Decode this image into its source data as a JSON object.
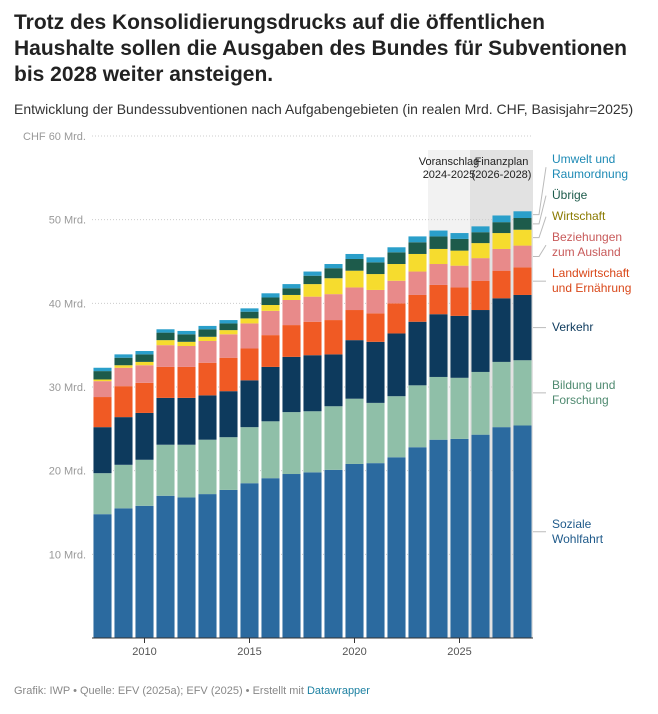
{
  "chart_data": {
    "type": "stacked-bar",
    "title": "Trotz des Konsolidierungsdrucks auf die öffentlichen Haushalte sollen die Ausgaben des Bundes für Subventionen bis 2028 weiter ansteigen.",
    "subtitle": "Entwicklung der Bundessubventionen nach Aufgabengebieten (in realen Mrd. CHF, Basisjahr=2025)",
    "x": [
      2008,
      2009,
      2010,
      2011,
      2012,
      2013,
      2014,
      2015,
      2016,
      2017,
      2018,
      2019,
      2020,
      2021,
      2022,
      2023,
      2024,
      2025,
      2026,
      2027,
      2028
    ],
    "xlim": [
      2007.5,
      2028.5
    ],
    "xticks": [
      2010,
      2015,
      2020,
      2025
    ],
    "ylim": [
      0,
      60
    ],
    "yticks": [
      {
        "value": 10,
        "label": "10 Mrd."
      },
      {
        "value": 20,
        "label": "20 Mrd."
      },
      {
        "value": 30,
        "label": "30 Mrd."
      },
      {
        "value": 40,
        "label": "40 Mrd."
      },
      {
        "value": 50,
        "label": "50 Mrd."
      },
      {
        "value": 60,
        "label": "CHF 60 Mrd."
      }
    ],
    "grid": true,
    "series": [
      {
        "name": "Soziale\nWohlfahrt",
        "color": "#2b6a9f",
        "label_color": "#1f5a8a",
        "values": [
          14.8,
          15.5,
          15.8,
          17.0,
          16.8,
          17.2,
          17.7,
          18.5,
          19.1,
          19.6,
          19.8,
          20.1,
          20.8,
          20.9,
          21.6,
          22.8,
          23.7,
          23.8,
          24.3,
          25.2,
          25.4
        ]
      },
      {
        "name": "Bildung und\nForschung",
        "color": "#8fbfa8",
        "label_color": "#4f8a70",
        "values": [
          4.9,
          5.2,
          5.5,
          6.1,
          6.3,
          6.5,
          6.3,
          6.7,
          6.8,
          7.4,
          7.3,
          7.6,
          7.8,
          7.2,
          7.3,
          7.4,
          7.5,
          7.3,
          7.5,
          7.8,
          7.8
        ]
      },
      {
        "name": "Verkehr",
        "color": "#0d3a5d",
        "label_color": "#0d3a5d",
        "values": [
          5.5,
          5.7,
          5.6,
          5.6,
          5.6,
          5.3,
          5.5,
          5.6,
          6.5,
          6.6,
          6.7,
          6.2,
          7.0,
          7.3,
          7.5,
          7.6,
          7.5,
          7.4,
          7.4,
          7.6,
          7.8
        ]
      },
      {
        "name": "Landwirtschaft\nund Ernährung",
        "color": "#f05a24",
        "label_color": "#d9481a",
        "values": [
          3.6,
          3.7,
          3.6,
          3.7,
          3.7,
          3.9,
          4.0,
          3.8,
          3.8,
          3.8,
          4.0,
          4.1,
          3.6,
          3.4,
          3.6,
          3.2,
          3.5,
          3.4,
          3.5,
          3.3,
          3.3
        ]
      },
      {
        "name": "Beziehungen\nzum Ausland",
        "color": "#e88a8a",
        "label_color": "#c85a5a",
        "values": [
          1.9,
          2.2,
          2.1,
          2.6,
          2.5,
          2.6,
          2.8,
          3.0,
          2.9,
          3.0,
          3.0,
          3.1,
          2.7,
          2.8,
          2.7,
          2.8,
          2.5,
          2.6,
          2.7,
          2.6,
          2.6
        ]
      },
      {
        "name": "Wirtschaft",
        "color": "#f6dc2e",
        "label_color": "#8a7a00",
        "values": [
          0.2,
          0.3,
          0.4,
          0.6,
          0.5,
          0.5,
          0.5,
          0.6,
          0.7,
          0.6,
          1.5,
          1.9,
          2.0,
          1.9,
          2.0,
          2.1,
          1.8,
          1.8,
          1.8,
          1.9,
          1.9
        ]
      },
      {
        "name": "Übrige",
        "color": "#1d5b4b",
        "label_color": "#1d5b4b",
        "values": [
          1.0,
          0.9,
          0.9,
          0.9,
          0.9,
          0.9,
          0.8,
          0.8,
          0.9,
          0.8,
          1.0,
          1.2,
          1.4,
          1.4,
          1.4,
          1.4,
          1.5,
          1.4,
          1.3,
          1.3,
          1.4
        ]
      },
      {
        "name": "Umwelt und\nRaumordnung",
        "color": "#2a9fca",
        "label_color": "#1d8ab5",
        "values": [
          0.4,
          0.4,
          0.4,
          0.4,
          0.4,
          0.4,
          0.4,
          0.4,
          0.5,
          0.5,
          0.5,
          0.5,
          0.6,
          0.6,
          0.6,
          0.7,
          0.7,
          0.7,
          0.7,
          0.8,
          0.8
        ]
      }
    ],
    "highlights": [
      {
        "label": "Voranschlag\n2024-2025",
        "from": 2024,
        "to": 2025,
        "color": "#f2f2f2"
      },
      {
        "label": "Finanzplan\n(2026-2028)",
        "from": 2026,
        "to": 2028,
        "color": "#e2e2e2"
      }
    ],
    "footer": "Grafik: IWP • Quelle: EFV (2025a); EFV (2025) • Erstellt mit ",
    "footer_link": "Datawrapper"
  }
}
